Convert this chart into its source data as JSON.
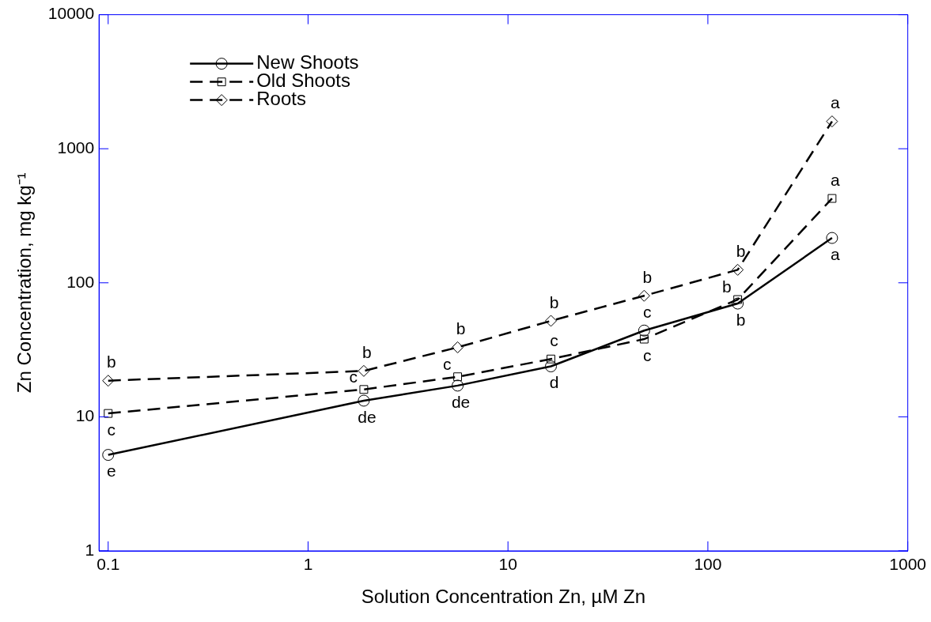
{
  "chart_data": {
    "type": "line",
    "xlabel": "Solution Concentration Zn, µM Zn",
    "ylabel": "Zn Concentration, mg kg⁻¹",
    "log": "xy",
    "grid": false,
    "legend": "top left",
    "xlim": [
      0.09,
      1000
    ],
    "xticks": [
      0.1,
      1,
      10,
      100,
      1000
    ],
    "ylim": [
      1,
      10000
    ],
    "yticks": [
      1,
      10,
      100,
      1000,
      10000
    ],
    "x": [
      0.1,
      1.9,
      5.6,
      16.4,
      48,
      141,
      418
    ],
    "series": [
      {
        "name": "New Shoots",
        "color": "#000000",
        "marker": "circle",
        "line_style": "solid",
        "values": [
          5.2,
          13.2,
          17.1,
          23.8,
          44,
          70,
          216
        ],
        "value_labels": [
          "e",
          "de",
          "de",
          "d",
          "c",
          "b",
          "a"
        ]
      },
      {
        "name": "Old Shoots",
        "color": "#000000",
        "marker": "square",
        "line_style": "dashed",
        "values": [
          10.6,
          16,
          19.9,
          27,
          38,
          75,
          426
        ],
        "value_labels": [
          "c",
          "c",
          "c",
          "c",
          "c",
          "b",
          "a"
        ]
      },
      {
        "name": "Roots",
        "color": "#000000",
        "marker": "diamond",
        "line_style": "dashed",
        "values": [
          18.6,
          22,
          33,
          52,
          80,
          125,
          1600
        ],
        "value_labels": [
          "b",
          "b",
          "b",
          "b",
          "b",
          "b",
          "a"
        ]
      }
    ]
  }
}
